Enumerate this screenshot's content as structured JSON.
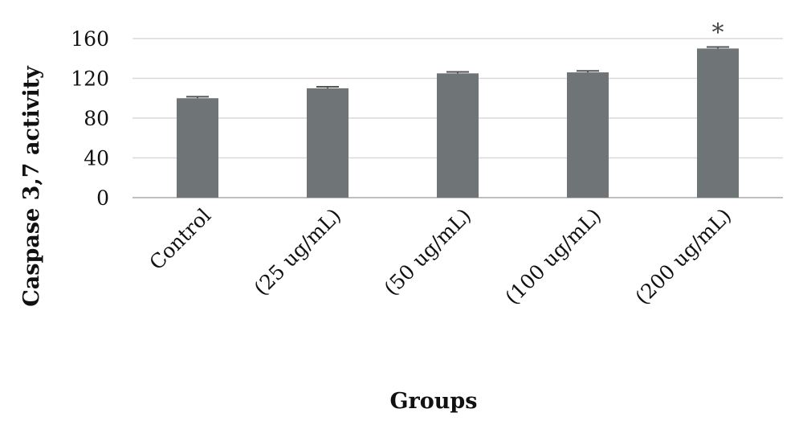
{
  "chart_data": {
    "type": "bar",
    "title": "",
    "xlabel": "Groups",
    "ylabel": "Caspase 3,7 activity",
    "ylim": [
      0,
      160
    ],
    "yticks": [
      0,
      40,
      80,
      120,
      160
    ],
    "grid": true,
    "legend": "none",
    "categories": [
      "Control",
      "(25 ug/mL)",
      "(50 ug/mL)",
      "(100 ug/mL)",
      "(200 ug/mL)"
    ],
    "values": [
      100,
      110,
      125,
      126,
      150
    ],
    "error": [
      1.5,
      1.5,
      1.5,
      1.5,
      1.5
    ],
    "annotations": [
      "",
      "",
      "",
      "",
      "*"
    ],
    "colors": {
      "bar": "#6f7577",
      "grid": "#d9d9d9",
      "axis": "#bfbfbf"
    }
  }
}
